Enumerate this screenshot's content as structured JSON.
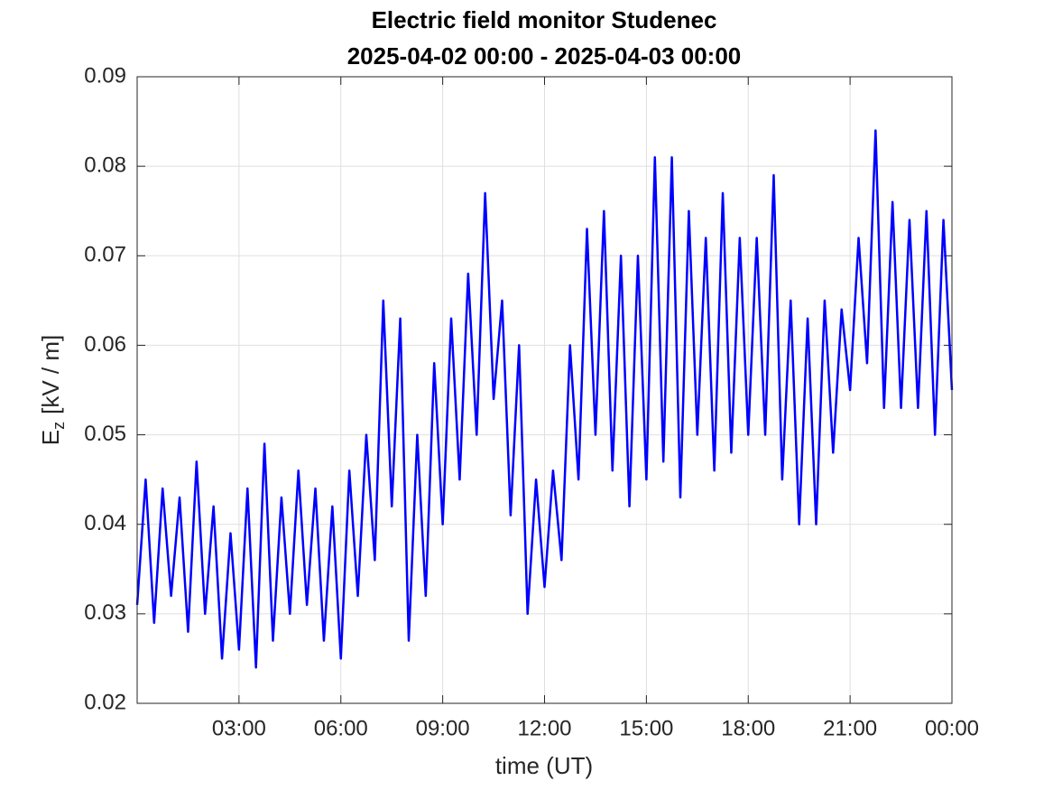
{
  "chart_data": {
    "type": "line",
    "title": "Electric field monitor Studenec",
    "subtitle": "2025-04-02 00:00 - 2025-04-03 00:00",
    "xlabel": "time (UT)",
    "ylabel": {
      "symbol": "E",
      "subscript": "z",
      "unit": "[kV / m]"
    },
    "xlim": [
      0,
      24
    ],
    "xticks": [
      {
        "value": 3,
        "label": "03:00"
      },
      {
        "value": 6,
        "label": "06:00"
      },
      {
        "value": 9,
        "label": "09:00"
      },
      {
        "value": 12,
        "label": "12:00"
      },
      {
        "value": 15,
        "label": "15:00"
      },
      {
        "value": 18,
        "label": "18:00"
      },
      {
        "value": 21,
        "label": "21:00"
      },
      {
        "value": 24,
        "label": "00:00"
      }
    ],
    "ylim": [
      0.02,
      0.09
    ],
    "yticks": [
      0.02,
      0.03,
      0.04,
      0.05,
      0.06,
      0.07,
      0.08,
      0.09
    ],
    "grid": true,
    "series": [
      {
        "color": "#0000ff",
        "x": [
          0,
          0.25,
          0.5,
          0.75,
          1,
          1.25,
          1.5,
          1.75,
          2,
          2.25,
          2.5,
          2.75,
          3,
          3.25,
          3.5,
          3.75,
          4,
          4.25,
          4.5,
          4.75,
          5,
          5.25,
          5.5,
          5.75,
          6,
          6.25,
          6.5,
          6.75,
          7,
          7.25,
          7.5,
          7.75,
          8,
          8.25,
          8.5,
          8.75,
          9,
          9.25,
          9.5,
          9.75,
          10,
          10.25,
          10.5,
          10.75,
          11,
          11.25,
          11.5,
          11.75,
          12,
          12.25,
          12.5,
          12.75,
          13,
          13.25,
          13.5,
          13.75,
          14,
          14.25,
          14.5,
          14.75,
          15,
          15.25,
          15.5,
          15.75,
          16,
          16.25,
          16.5,
          16.75,
          17,
          17.25,
          17.5,
          17.75,
          18,
          18.25,
          18.5,
          18.75,
          19,
          19.25,
          19.5,
          19.75,
          20,
          20.25,
          20.5,
          20.75,
          21,
          21.25,
          21.5,
          21.75,
          22,
          22.25,
          22.5,
          22.75,
          23,
          23.25,
          23.5,
          23.75,
          24
        ],
        "values": [
          0.031,
          0.045,
          0.029,
          0.044,
          0.032,
          0.043,
          0.028,
          0.047,
          0.03,
          0.042,
          0.025,
          0.039,
          0.026,
          0.044,
          0.024,
          0.049,
          0.027,
          0.043,
          0.03,
          0.046,
          0.031,
          0.044,
          0.027,
          0.042,
          0.025,
          0.046,
          0.032,
          0.05,
          0.036,
          0.065,
          0.042,
          0.063,
          0.027,
          0.05,
          0.032,
          0.058,
          0.04,
          0.063,
          0.045,
          0.068,
          0.05,
          0.077,
          0.054,
          0.065,
          0.041,
          0.06,
          0.03,
          0.045,
          0.033,
          0.046,
          0.036,
          0.06,
          0.045,
          0.073,
          0.05,
          0.075,
          0.046,
          0.07,
          0.042,
          0.07,
          0.045,
          0.081,
          0.047,
          0.081,
          0.043,
          0.075,
          0.05,
          0.072,
          0.046,
          0.077,
          0.048,
          0.072,
          0.05,
          0.072,
          0.05,
          0.079,
          0.045,
          0.065,
          0.04,
          0.063,
          0.04,
          0.065,
          0.048,
          0.064,
          0.055,
          0.072,
          0.058,
          0.084,
          0.053,
          0.076,
          0.053,
          0.074,
          0.053,
          0.075,
          0.05,
          0.074,
          0.055
        ]
      }
    ]
  }
}
